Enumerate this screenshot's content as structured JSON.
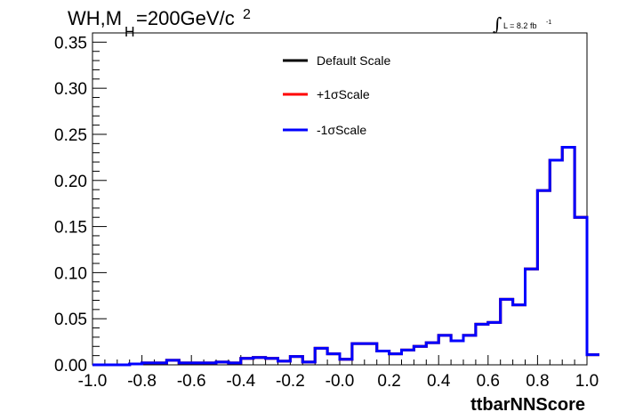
{
  "header": {
    "title_main": "WH,M",
    "title_sub": "H",
    "title_rest": "=200GeV/c",
    "title_sup": "2",
    "lumi_text": "L = 8.2 fb",
    "lumi_sup": "-1"
  },
  "chart_data": {
    "type": "line",
    "title": "WH,MH=200GeV/c 2",
    "xlabel": "ttbarNNScore",
    "ylabel": "",
    "xlim": [
      -1.0,
      1.0
    ],
    "ylim": [
      0.0,
      0.36
    ],
    "x_ticks": [
      "-1.0",
      "-0.8",
      "-0.6",
      "-0.4",
      "-0.2",
      "-0.0",
      "0.2",
      "0.4",
      "0.6",
      "0.8",
      "1.0"
    ],
    "y_ticks": [
      "0.00",
      "0.05",
      "0.10",
      "0.15",
      "0.20",
      "0.25",
      "0.30",
      "0.35"
    ],
    "bin_edges": [
      -1.0,
      -0.95,
      -0.9,
      -0.85,
      -0.8,
      -0.75,
      -0.7,
      -0.65,
      -0.6,
      -0.55,
      -0.5,
      -0.45,
      -0.4,
      -0.35,
      -0.3,
      -0.25,
      -0.2,
      -0.15,
      -0.1,
      -0.05,
      0.0,
      0.05,
      0.1,
      0.15,
      0.2,
      0.25,
      0.3,
      0.35,
      0.4,
      0.45,
      0.5,
      0.55,
      0.6,
      0.65,
      0.7,
      0.75,
      0.8,
      0.85,
      0.9,
      0.95,
      1.0
    ],
    "series": [
      {
        "name": "Default Scale",
        "color": "#000000",
        "values": [
          0.0,
          0.0,
          0.0,
          0.001,
          0.002,
          0.002,
          0.005,
          0.002,
          0.002,
          0.002,
          0.003,
          0.002,
          0.007,
          0.008,
          0.007,
          0.004,
          0.009,
          0.003,
          0.018,
          0.012,
          0.006,
          0.023,
          0.023,
          0.015,
          0.012,
          0.016,
          0.02,
          0.024,
          0.032,
          0.026,
          0.032,
          0.044,
          0.046,
          0.071,
          0.065,
          0.104,
          0.189,
          0.222,
          0.236,
          0.16,
          0.011
        ]
      },
      {
        "name": "+1σScale",
        "color": "#ff0000",
        "values": [
          0.0,
          0.0,
          0.0,
          0.001,
          0.002,
          0.002,
          0.005,
          0.002,
          0.002,
          0.002,
          0.003,
          0.002,
          0.007,
          0.008,
          0.007,
          0.004,
          0.009,
          0.003,
          0.018,
          0.012,
          0.006,
          0.023,
          0.023,
          0.015,
          0.012,
          0.016,
          0.02,
          0.024,
          0.032,
          0.026,
          0.032,
          0.044,
          0.046,
          0.071,
          0.065,
          0.104,
          0.189,
          0.222,
          0.236,
          0.16,
          0.011
        ]
      },
      {
        "name": "-1σScale",
        "color": "#0000ff",
        "values": [
          0.0,
          0.0,
          0.0,
          0.001,
          0.002,
          0.002,
          0.005,
          0.002,
          0.002,
          0.002,
          0.003,
          0.002,
          0.007,
          0.008,
          0.007,
          0.004,
          0.009,
          0.003,
          0.018,
          0.012,
          0.006,
          0.023,
          0.023,
          0.015,
          0.012,
          0.016,
          0.02,
          0.024,
          0.032,
          0.026,
          0.032,
          0.044,
          0.046,
          0.071,
          0.065,
          0.104,
          0.189,
          0.222,
          0.236,
          0.16,
          0.011
        ]
      }
    ],
    "legend_placement": "top-center",
    "grid": false
  }
}
